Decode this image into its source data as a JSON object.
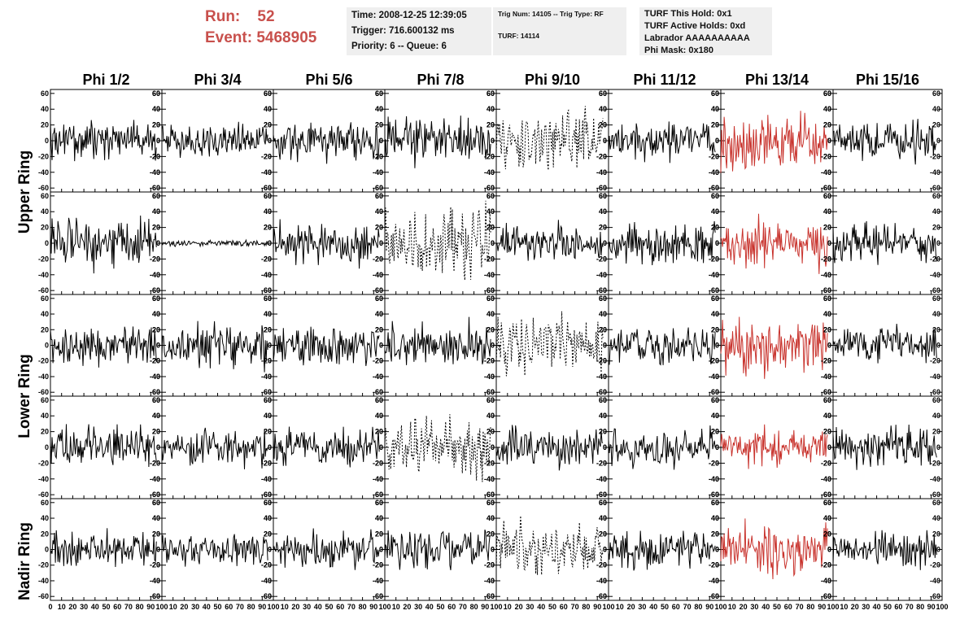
{
  "header": {
    "run_label": "Run:",
    "run_value": "52",
    "event_label": "Event:",
    "event_value": "5468905",
    "time_box": {
      "line1": "Time: 2008-12-25 12:39:05",
      "line2": "Trigger: 716.600132 ms",
      "line3": "Priority: 6 -- Queue: 6"
    },
    "trig_box": {
      "line1": "Trig Num: 14105 -- Trig Type: RF",
      "line2": "TURF: 14114"
    },
    "turf_box": {
      "line1": "TURF This Hold: 0x1",
      "line2": "TURF Active Holds: 0xd",
      "line3": "Labrador AAAAAAAAAA",
      "line4": "Phi Mask: 0x180"
    }
  },
  "colors": {
    "header_red": "#c8504c",
    "trace_red": "#c8322c",
    "trace_black": "#000000",
    "box_bg": "#efefef"
  },
  "chart_data": {
    "type": "line",
    "columns": [
      "Phi 1/2",
      "Phi 3/4",
      "Phi 5/6",
      "Phi 7/8",
      "Phi 9/10",
      "Phi 11/12",
      "Phi 13/14",
      "Phi 15/16"
    ],
    "ring_labels": [
      "Upper Ring",
      "Lower Ring",
      "Nadir Ring"
    ],
    "xlim": [
      0,
      100
    ],
    "ylim": [
      -65,
      65
    ],
    "xticks": [
      0,
      10,
      20,
      30,
      40,
      50,
      60,
      70,
      80,
      90,
      100
    ],
    "xtick_labels": [
      "0",
      "10",
      "20",
      "30",
      "40",
      "50",
      "60",
      "70",
      "80",
      "90",
      "100"
    ],
    "yticks": [
      -60,
      -40,
      -20,
      0,
      20,
      40,
      60
    ],
    "ytick_labels": [
      "-60",
      "-40",
      "-20",
      "0",
      "20",
      "40",
      "60"
    ],
    "samples_per_trace": 128,
    "highlight_column": "Phi 13/14",
    "dashed_panels": [
      {
        "row": 0,
        "col": 4
      },
      {
        "row": 1,
        "col": 3
      },
      {
        "row": 2,
        "col": 4
      },
      {
        "row": 3,
        "col": 3
      },
      {
        "row": 4,
        "col": 4
      }
    ],
    "panel_amplitude": [
      [
        10,
        10,
        11,
        12,
        12,
        10,
        16,
        11
      ],
      [
        13,
        2,
        11,
        15,
        11,
        11,
        13,
        11
      ],
      [
        10,
        12,
        11,
        13,
        12,
        10,
        14,
        10
      ],
      [
        11,
        10,
        10,
        13,
        11,
        10,
        10,
        11
      ],
      [
        10,
        8,
        10,
        11,
        10,
        11,
        13,
        10
      ]
    ]
  }
}
